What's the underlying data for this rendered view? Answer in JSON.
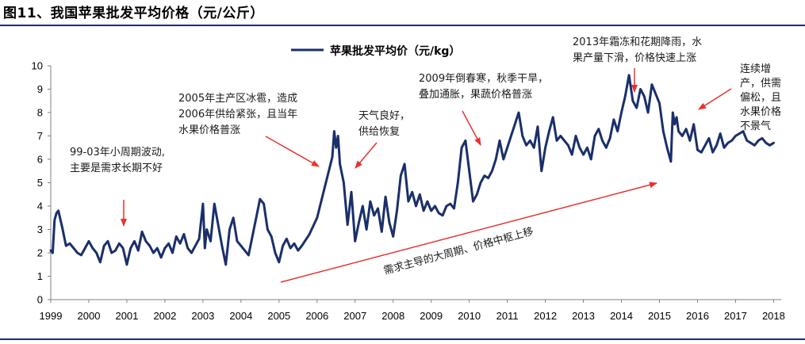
{
  "figure_title": "图11、我国苹果批发平均价格（元/公斤）",
  "colors": {
    "series": "#1a2f6b",
    "annotation_arrow": "#e8322e",
    "rule": "#1a2f6b"
  },
  "chart_data": {
    "type": "line",
    "title": "",
    "xlabel": "",
    "ylabel": "",
    "ylim": [
      0,
      10
    ],
    "xlim": [
      1999,
      2018.2
    ],
    "y_ticks": [
      "0",
      "1",
      "2",
      "3",
      "4",
      "5",
      "6",
      "7",
      "8",
      "9",
      "10"
    ],
    "x_ticks": [
      "1999",
      "2000",
      "2001",
      "2002",
      "2003",
      "2004",
      "2005",
      "2006",
      "2007",
      "2008",
      "2009",
      "2010",
      "2011",
      "2012",
      "2013",
      "2014",
      "2015",
      "2016",
      "2017",
      "2018"
    ],
    "grid": false,
    "legend": "top-center",
    "series": [
      {
        "name": "苹果批发平均价（元/kg）",
        "x": [
          1999.0,
          1999.05,
          1999.1,
          1999.15,
          1999.2,
          1999.3,
          1999.4,
          1999.5,
          1999.6,
          1999.7,
          1999.8,
          1999.9,
          2000.0,
          2000.1,
          2000.2,
          2000.3,
          2000.4,
          2000.5,
          2000.6,
          2000.7,
          2000.8,
          2000.9,
          2001.0,
          2001.1,
          2001.2,
          2001.3,
          2001.4,
          2001.5,
          2001.6,
          2001.7,
          2001.8,
          2001.9,
          2002.0,
          2002.1,
          2002.2,
          2002.3,
          2002.4,
          2002.5,
          2002.6,
          2002.7,
          2002.8,
          2002.9,
          2003.0,
          2003.05,
          2003.1,
          2003.2,
          2003.3,
          2003.4,
          2003.5,
          2003.6,
          2003.7,
          2003.8,
          2003.9,
          2004.0,
          2004.2,
          2004.4,
          2004.5,
          2004.6,
          2004.7,
          2004.8,
          2004.9,
          2005.0,
          2005.1,
          2005.2,
          2005.3,
          2005.4,
          2005.5,
          2005.6,
          2005.8,
          2006.0,
          2006.2,
          2006.4,
          2006.45,
          2006.5,
          2006.55,
          2006.6,
          2006.7,
          2006.8,
          2006.9,
          2007.0,
          2007.1,
          2007.2,
          2007.3,
          2007.4,
          2007.5,
          2007.6,
          2007.7,
          2007.8,
          2007.9,
          2008.0,
          2008.1,
          2008.2,
          2008.3,
          2008.4,
          2008.5,
          2008.6,
          2008.7,
          2008.8,
          2008.9,
          2009.0,
          2009.1,
          2009.2,
          2009.3,
          2009.4,
          2009.5,
          2009.6,
          2009.7,
          2009.8,
          2009.9,
          2010.0,
          2010.1,
          2010.2,
          2010.3,
          2010.4,
          2010.5,
          2010.6,
          2010.7,
          2010.8,
          2010.9,
          2011.0,
          2011.1,
          2011.2,
          2011.3,
          2011.4,
          2011.5,
          2011.6,
          2011.7,
          2011.8,
          2011.9,
          2012.0,
          2012.1,
          2012.2,
          2012.3,
          2012.4,
          2012.5,
          2012.6,
          2012.7,
          2012.8,
          2012.9,
          2013.0,
          2013.1,
          2013.2,
          2013.3,
          2013.4,
          2013.5,
          2013.6,
          2013.7,
          2013.8,
          2013.9,
          2014.0,
          2014.1,
          2014.2,
          2014.3,
          2014.4,
          2014.5,
          2014.6,
          2014.7,
          2014.8,
          2014.9,
          2015.0,
          2015.1,
          2015.2,
          2015.3,
          2015.35,
          2015.4,
          2015.45,
          2015.5,
          2015.6,
          2015.7,
          2015.8,
          2015.9,
          2016.0,
          2016.1,
          2016.2,
          2016.3,
          2016.4,
          2016.5,
          2016.6,
          2016.7,
          2016.8,
          2016.9,
          2017.0,
          2017.1,
          2017.2,
          2017.3,
          2017.4,
          2017.5,
          2017.6,
          2017.7,
          2017.8,
          2017.9,
          2018.0
        ],
        "y": [
          2.1,
          2.0,
          3.4,
          3.7,
          3.8,
          3.1,
          2.3,
          2.4,
          2.2,
          2.0,
          1.9,
          2.2,
          2.5,
          2.2,
          2.0,
          1.6,
          2.3,
          2.5,
          2.0,
          2.1,
          2.4,
          2.2,
          1.5,
          2.2,
          2.5,
          2.1,
          2.9,
          2.5,
          2.3,
          2.0,
          2.2,
          1.8,
          2.2,
          2.4,
          2.0,
          2.7,
          2.4,
          2.8,
          2.2,
          2.0,
          2.3,
          2.6,
          4.1,
          2.2,
          3.0,
          2.5,
          4.1,
          3.2,
          2.3,
          1.5,
          3.0,
          3.5,
          2.5,
          2.3,
          1.9,
          3.5,
          4.3,
          4.1,
          3.0,
          2.7,
          2.0,
          1.6,
          2.3,
          2.6,
          2.2,
          2.4,
          2.1,
          2.3,
          2.8,
          3.5,
          4.8,
          6.1,
          7.2,
          6.5,
          7.0,
          5.8,
          5.0,
          3.2,
          4.6,
          2.5,
          3.3,
          4.0,
          3.0,
          4.2,
          3.6,
          3.9,
          2.9,
          4.4,
          3.3,
          2.7,
          3.8,
          5.3,
          5.8,
          4.2,
          4.6,
          4.0,
          4.5,
          3.8,
          4.2,
          3.8,
          4.0,
          3.7,
          3.6,
          4.0,
          4.1,
          3.9,
          5.0,
          6.5,
          6.8,
          5.5,
          4.2,
          4.5,
          5.0,
          5.3,
          5.2,
          5.5,
          6.0,
          6.8,
          6.0,
          6.5,
          7.0,
          7.5,
          8.0,
          7.0,
          6.6,
          6.8,
          6.5,
          7.4,
          5.5,
          6.5,
          7.2,
          7.8,
          6.8,
          7.0,
          6.8,
          6.6,
          6.2,
          7.0,
          6.5,
          6.2,
          6.5,
          6.0,
          7.0,
          7.3,
          6.8,
          6.5,
          6.9,
          7.7,
          7.2,
          8.0,
          8.7,
          9.6,
          8.5,
          8.2,
          9.0,
          8.7,
          8.0,
          9.2,
          8.8,
          8.4,
          7.2,
          6.5,
          5.9,
          8.0,
          7.5,
          7.8,
          7.2,
          7.0,
          7.3,
          6.8,
          7.5,
          6.4,
          6.3,
          6.6,
          6.9,
          6.3,
          6.6,
          7.1,
          6.5,
          6.7,
          6.8,
          7.0,
          7.1,
          7.2,
          6.8,
          6.7,
          6.6,
          6.8,
          6.9,
          6.7,
          6.6,
          6.7
        ]
      }
    ],
    "annotations": [
      {
        "lines": [
          "99-03年小周期波动,",
          "主要是需求长期不好"
        ],
        "arrow": "down-straight"
      },
      {
        "lines": [
          "2005年主产区冰雹，造成",
          "2006年供给紧张，且当年",
          "水果价格普涨"
        ],
        "arrow": "diagonal-down-right"
      },
      {
        "lines": [
          "天气良好，",
          "供给恢复"
        ],
        "arrow": "diagonal-down-left"
      },
      {
        "lines": [
          "2009年倒春寒，秋季干旱，",
          "叠加通胀，果蔬价格普涨"
        ],
        "arrow": "diagonal-down-right"
      },
      {
        "lines": [
          "2013年霜冻和花期降雨，水",
          "果产量下滑，价格快速上涨"
        ],
        "arrow": "down-straight"
      },
      {
        "lines": [
          "连续增",
          "产，供需",
          "偏松，且",
          "水果价格",
          "不景气"
        ],
        "arrow": "diagonal-down-left"
      },
      {
        "lines": [
          "需求主导的大周期、价格中枢上移"
        ],
        "arrow": "long-trend-up-right"
      }
    ]
  }
}
